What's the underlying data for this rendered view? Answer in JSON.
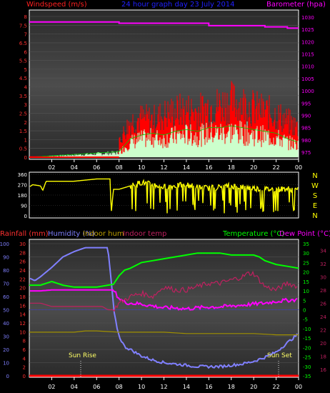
{
  "top_panel": {
    "title": "24 hour graph day  23 July 2014",
    "left_label": "Windspeed (m/s)",
    "right_label": "Barometer (hpa)",
    "colors": {
      "title": "#2020ff",
      "left": "#ff2020",
      "right": "#ff00ff",
      "wind_gust": "#ff0000",
      "wind_avg": "#ccffcc",
      "pressure": "#ff00ff"
    }
  },
  "dir_panel": {
    "left_ticks": [
      "360",
      "270",
      "180",
      "90",
      "0"
    ],
    "compass": [
      "N",
      "W",
      "S",
      "E",
      "N"
    ],
    "colors": {
      "line": "#ffff00",
      "compass": "#ffff00"
    }
  },
  "bottom_panel": {
    "labels": [
      {
        "text": "Rainfall (mm)",
        "color": "#ff3030"
      },
      {
        "text": "Humidity (%)",
        "color": "#8080ff"
      },
      {
        "text": "Indoor hum",
        "color": "#c0a000"
      },
      {
        "text": "Indoor temp",
        "color": "#c02060"
      }
    ],
    "right_labels": [
      {
        "text": "Temperature (°C)",
        "color": "#00ff00"
      },
      {
        "text": "Dew Point (°C)",
        "color": "#ff00ff"
      }
    ],
    "annotations": [
      "Sun Rise",
      "Sun Set"
    ]
  },
  "chart_data": [
    {
      "type": "line",
      "title": "24 hour graph day  23 July 2014",
      "xlabel": "",
      "x_ticks": [
        "02",
        "04",
        "06",
        "08",
        "10",
        "12",
        "14",
        "16",
        "18",
        "20",
        "22",
        "00"
      ],
      "y_left": {
        "label": "Windspeed (m/s)",
        "ticks": [
          "8",
          "7.5",
          "7",
          "6.5",
          "6",
          "5.5",
          "5",
          "4.5",
          "4",
          "3.5",
          "3",
          "2.5",
          "2",
          "1.5",
          "1",
          "0.5",
          "0"
        ],
        "range": [
          0,
          8
        ]
      },
      "y_right": {
        "label": "Barometer (hpa)",
        "ticks": [
          "1030",
          "1025",
          "1020",
          "1015",
          "1010",
          "1005",
          "1000",
          "995",
          "990",
          "985",
          "980",
          "975"
        ],
        "range": [
          973,
          1032
        ]
      },
      "series": [
        {
          "name": "Barometer (hpa)",
          "axis": "right",
          "x": [
            0,
            1,
            2,
            3,
            4,
            5,
            6,
            7,
            8,
            9,
            10,
            11,
            12,
            13,
            14,
            15,
            16,
            17,
            18,
            19,
            20,
            21,
            22,
            23,
            24
          ],
          "values": [
            1028,
            1028,
            1028,
            1028,
            1028,
            1028,
            1028,
            1028,
            1027.5,
            1027.5,
            1027.5,
            1027.5,
            1027.5,
            1027.5,
            1027.5,
            1027.5,
            1026.5,
            1026.5,
            1026.5,
            1026.5,
            1026.5,
            1026,
            1026,
            1025.5,
            1025.5
          ]
        },
        {
          "name": "Wind gust",
          "axis": "left",
          "x": [
            0,
            2,
            4,
            6,
            7.9,
            8,
            9,
            10,
            11,
            12,
            13,
            14,
            15,
            16,
            17,
            18,
            19,
            20,
            21,
            22,
            23,
            24
          ],
          "values": [
            0.05,
            0.05,
            0.05,
            0.05,
            0.05,
            1,
            2.2,
            2.4,
            2.3,
            2.6,
            2.8,
            2.9,
            2.8,
            3.1,
            3.2,
            3.4,
            3.3,
            3.0,
            2.8,
            2.6,
            2.2,
            1.8
          ]
        },
        {
          "name": "Wind average",
          "axis": "left",
          "x": [
            0,
            8,
            9,
            10,
            11,
            12,
            13,
            14,
            15,
            16,
            17,
            18,
            19,
            20,
            21,
            22,
            23,
            24
          ],
          "values": [
            0,
            0.3,
            1.0,
            1.2,
            1.3,
            1.2,
            1.4,
            1.5,
            1.4,
            1.6,
            1.6,
            1.7,
            1.6,
            1.5,
            1.4,
            1.3,
            1.0,
            0.8
          ]
        }
      ]
    },
    {
      "type": "line",
      "title": "",
      "x_ticks": [
        "02",
        "04",
        "06",
        "08",
        "10",
        "12",
        "14",
        "16",
        "18",
        "20",
        "22",
        "00"
      ],
      "y_left": {
        "label": "",
        "ticks": [
          "360",
          "270",
          "180",
          "90",
          "0"
        ],
        "range": [
          0,
          360
        ]
      },
      "series": [
        {
          "name": "Wind direction",
          "x": [
            0,
            0.3,
            1,
            1.2,
            1.5,
            2,
            3,
            4,
            5,
            6,
            6.5,
            7.2,
            7.3,
            7.5,
            8,
            9,
            10,
            11,
            12,
            13,
            14,
            15,
            16,
            17,
            18,
            19,
            20,
            21,
            22,
            23,
            24
          ],
          "values": [
            250,
            270,
            260,
            220,
            300,
            300,
            300,
            300,
            310,
            320,
            320,
            320,
            20,
            230,
            230,
            260,
            290,
            270,
            250,
            260,
            270,
            250,
            240,
            250,
            260,
            250,
            240,
            230,
            230,
            235,
            225
          ]
        }
      ]
    },
    {
      "type": "line",
      "title": "",
      "x_ticks": [
        "02",
        "04",
        "06",
        "08",
        "10",
        "12",
        "14",
        "16",
        "18",
        "20",
        "22",
        "00"
      ],
      "y_left_outer": {
        "label": "Rainfall (mm) / Humidity (%)",
        "ticks": [
          "100",
          "90",
          "80",
          "70",
          "60",
          "50",
          "40",
          "30",
          "20",
          "10",
          "0"
        ],
        "range": [
          0,
          100
        ]
      },
      "y_left_inner": {
        "label": "Rainfall (mm)",
        "ticks": [
          "30",
          "28",
          "26",
          "24",
          "22",
          "20",
          "18",
          "16",
          "14",
          "12",
          "10",
          "8",
          "6",
          "4",
          "2",
          "0"
        ],
        "range": [
          0,
          30
        ]
      },
      "y_right_inner": {
        "label": "Temperature (°C)",
        "ticks": [
          "35",
          "30",
          "25",
          "20",
          "15",
          "10",
          "5",
          "0",
          "-5",
          "-10",
          "-15",
          "-20",
          "-25",
          "-30",
          "-35"
        ],
        "range": [
          -35,
          35
        ]
      },
      "y_right_outer": {
        "label": "Indoor temp",
        "ticks": [
          "34",
          "32",
          "30",
          "28",
          "26",
          "24",
          "22",
          "20",
          "18",
          "16"
        ],
        "range": [
          15,
          35
        ]
      },
      "series": [
        {
          "name": "Humidity (%)",
          "axis": "left_outer",
          "x": [
            0,
            0.5,
            1,
            2,
            3,
            4,
            5,
            6,
            6.5,
            7,
            7.3,
            7.6,
            8,
            8.5,
            9,
            10,
            11,
            12,
            13,
            14,
            15,
            16,
            17,
            18,
            19,
            20,
            21,
            22,
            23,
            24
          ],
          "values": [
            74,
            72,
            75,
            82,
            90,
            94,
            97,
            97,
            97,
            97,
            72,
            45,
            30,
            22,
            20,
            15,
            12,
            10,
            9,
            8,
            7,
            7,
            7,
            8,
            9,
            11,
            14,
            18,
            25,
            32
          ]
        },
        {
          "name": "Temperature (°C)",
          "axis": "right_inner",
          "x": [
            0,
            1,
            2,
            3,
            4,
            5,
            6,
            7,
            7.5,
            8,
            8.5,
            9,
            10,
            11,
            12,
            13,
            14,
            15,
            16,
            17,
            18,
            19,
            20,
            20.5,
            21,
            22,
            23,
            24
          ],
          "values": [
            13,
            13,
            15,
            13,
            12,
            12,
            12,
            13,
            13.5,
            18,
            21,
            22,
            25,
            26,
            27,
            28,
            29,
            30,
            30,
            30,
            29,
            29,
            29,
            28,
            26,
            24,
            23,
            22
          ]
        },
        {
          "name": "Dew Point (°C)",
          "axis": "right_inner",
          "x": [
            0,
            1,
            2,
            3,
            4,
            5,
            6,
            7,
            7.5,
            8,
            8.5,
            9,
            10,
            11,
            12,
            13,
            14,
            15,
            16,
            17,
            18,
            19,
            20,
            21,
            22,
            23,
            24
          ],
          "values": [
            10,
            10,
            10.5,
            10.5,
            10.5,
            10.5,
            10.5,
            10.5,
            10.5,
            6,
            4,
            3.5,
            3,
            2,
            1,
            1,
            0.5,
            1,
            1.5,
            1.5,
            2,
            2.5,
            3,
            3.5,
            4.5,
            5,
            5.5
          ]
        },
        {
          "name": "Indoor temp",
          "axis": "right_outer",
          "x": [
            0,
            1,
            2,
            3,
            4,
            5,
            6,
            6.5,
            7,
            7.5,
            8,
            8.5,
            9,
            10,
            11,
            12,
            13,
            14,
            15,
            16,
            17,
            18,
            19,
            19.5,
            20,
            21,
            22,
            23,
            24
          ],
          "values": [
            26,
            26,
            25.5,
            25.5,
            25.5,
            25.5,
            25.5,
            25.5,
            25,
            25,
            26,
            26.5,
            27,
            27.5,
            27,
            28.5,
            28,
            28,
            28.5,
            29,
            29,
            29.5,
            30,
            30.5,
            30.5,
            28.5,
            28,
            29,
            28.5
          ]
        },
        {
          "name": "Indoor hum",
          "axis": "left_outer",
          "x": [
            0,
            2,
            4,
            5,
            6,
            8,
            10,
            12,
            14,
            16,
            18,
            20,
            22,
            24
          ],
          "values": [
            33,
            33,
            33,
            34,
            34,
            33,
            33,
            33,
            32,
            32,
            32,
            32,
            31,
            31
          ]
        },
        {
          "name": "Rainfall (mm)",
          "axis": "left_inner",
          "x": [
            0,
            24
          ],
          "values": [
            0,
            0
          ]
        }
      ]
    }
  ]
}
